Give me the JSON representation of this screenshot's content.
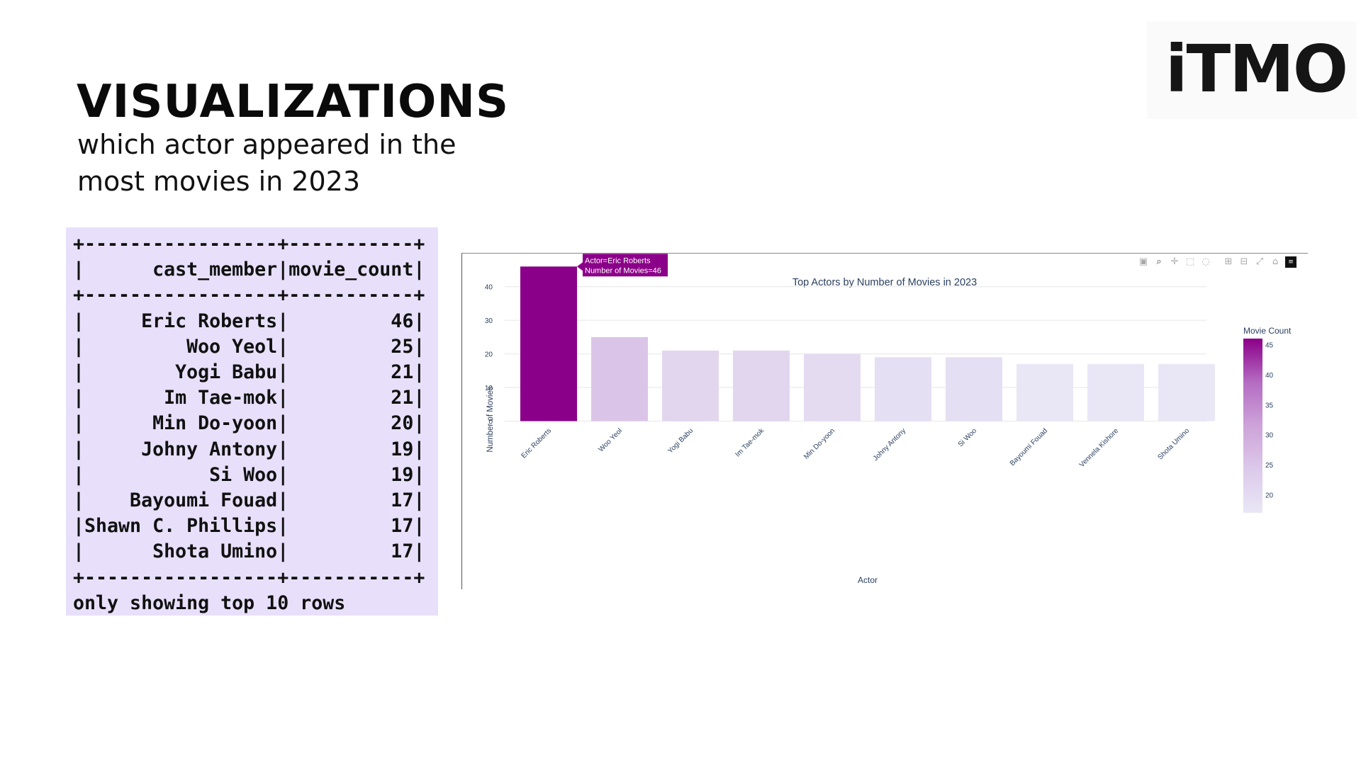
{
  "slide": {
    "title": "VISUALIZATIONS",
    "subtitle": "which actor appeared in the most movies in 2023",
    "logo": "iTMO"
  },
  "query_output": {
    "border": "+-----------------+-----------+",
    "header": "|      cast_member|movie_count|",
    "columns": [
      "cast_member",
      "movie_count"
    ],
    "rows": [
      [
        "Eric Roberts",
        46
      ],
      [
        "Woo Yeol",
        25
      ],
      [
        "Yogi Babu",
        21
      ],
      [
        "Im Tae-mok",
        21
      ],
      [
        "Min Do-yoon",
        20
      ],
      [
        "Johny Antony",
        19
      ],
      [
        "Si Woo",
        19
      ],
      [
        "Bayoumi Fouad",
        17
      ],
      [
        "Shawn C. Phillips",
        17
      ],
      [
        "Shota Umino",
        17
      ]
    ],
    "footer": "only showing top 10 rows"
  },
  "modebar": {
    "icons": [
      "camera-icon",
      "zoom-icon",
      "pan-icon",
      "box-select-icon",
      "lasso-icon",
      "zoom-in-icon",
      "zoom-out-icon",
      "autoscale-icon",
      "home-icon",
      "plotly-logo-icon"
    ]
  },
  "chart_data": {
    "type": "bar",
    "title": "Top Actors by Number of Movies in 2023",
    "xlabel": "Actor",
    "ylabel": "Number of Movies",
    "categories": [
      "Eric Roberts",
      "Woo Yeol",
      "Yogi Babu",
      "Im Tae-mok",
      "Min Do-yoon",
      "Johny Antony",
      "Si Woo",
      "Bayoumi Fouad",
      "Vennela Kishore",
      "Shota Umino"
    ],
    "values": [
      46,
      25,
      21,
      21,
      20,
      19,
      19,
      17,
      17,
      17
    ],
    "ylim": [
      0,
      46
    ],
    "yticks": [
      0,
      10,
      20,
      30,
      40
    ],
    "grid": true,
    "colorbar": {
      "title": "Movie Count",
      "ticks": [
        20,
        25,
        30,
        35,
        40,
        45
      ],
      "range": [
        17,
        46
      ],
      "colors": [
        "#e9e7f6",
        "#dcc9ea",
        "#cda3d9",
        "#b46cc2",
        "#8b0088"
      ]
    },
    "hover": {
      "actor_line": "Actor=Eric Roberts",
      "count_line": "Number of Movies=46"
    }
  }
}
